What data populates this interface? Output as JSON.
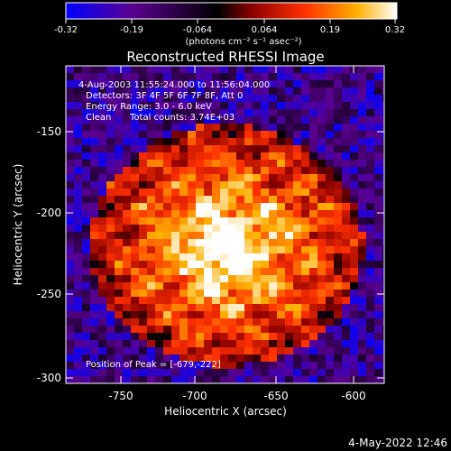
{
  "figure": {
    "title": "Reconstructed RHESSI Image",
    "colorbar": {
      "ticks": [
        "-0.32",
        "-0.19",
        "-0.064",
        "0.064",
        "0.19",
        "0.32"
      ],
      "units_line": "(photons cm⁻² s⁻¹ asec⁻²)",
      "range": [
        -0.32,
        0.32
      ],
      "colormap": [
        "#0000ff",
        "#5a0090",
        "#000000",
        "#8a0000",
        "#ff3000",
        "#ffb000",
        "#ffffff"
      ]
    },
    "x_axis": {
      "label": "Heliocentric X (arcsec)",
      "ticks": [
        "-750",
        "-700",
        "-650",
        "-600"
      ],
      "range": [
        -773,
        -580
      ]
    },
    "y_axis": {
      "label": "Heliocentric Y (arcsec)",
      "ticks": [
        "-150",
        "-200",
        "-250",
        "-300"
      ],
      "range": [
        -302,
        -118
      ]
    },
    "annotations": {
      "time_range": "4-Aug-2003 11:55:24.000 to 11:56:04.000",
      "detectors": "Detectors: 3F 4F 5F 6F 7F 8F, Att 0",
      "energy_range": "Energy Range: 3.0 - 6.0 keV",
      "algorithm": "Clean",
      "total_counts": "Total counts: 3.74E+03",
      "peak_position": "Position of Peak = [-679,-222]"
    },
    "peak": {
      "x": -679,
      "y": -222
    },
    "footer_timestamp": "4-May-2022 12:46"
  }
}
